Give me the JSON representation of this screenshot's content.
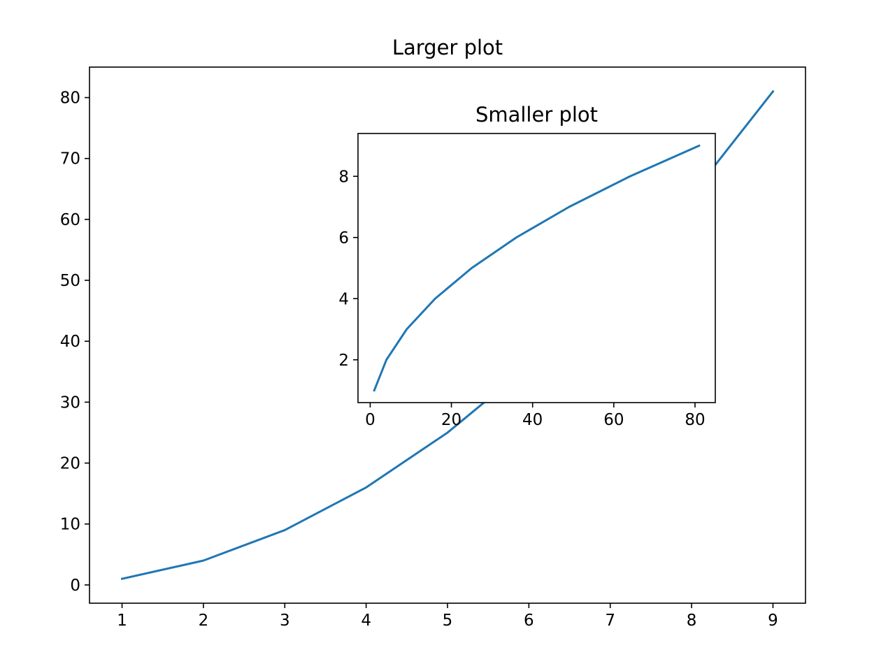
{
  "chart_data": [
    {
      "type": "line",
      "title": "Larger plot",
      "xlabel": "",
      "ylabel": "",
      "x": [
        1,
        2,
        3,
        4,
        5,
        6,
        7,
        8,
        9
      ],
      "series": [
        {
          "values": [
            1,
            4,
            9,
            16,
            25,
            36,
            49,
            64,
            81
          ],
          "color": "#1f77b4"
        }
      ],
      "xlim": [
        0.6,
        9.4
      ],
      "ylim": [
        -3,
        85
      ],
      "xticks": [
        1,
        2,
        3,
        4,
        5,
        6,
        7,
        8,
        9
      ],
      "yticks": [
        0,
        10,
        20,
        30,
        40,
        50,
        60,
        70,
        80
      ],
      "grid": false
    },
    {
      "type": "line",
      "title": "Smaller plot",
      "xlabel": "",
      "ylabel": "",
      "x": [
        1,
        4,
        9,
        16,
        25,
        36,
        49,
        64,
        81
      ],
      "series": [
        {
          "values": [
            1,
            2,
            3,
            4,
            5,
            6,
            7,
            8,
            9
          ],
          "color": "#1f77b4"
        }
      ],
      "xlim": [
        -3,
        85
      ],
      "ylim": [
        0.6,
        9.4
      ],
      "xticks": [
        0,
        20,
        40,
        60,
        80
      ],
      "yticks": [
        2,
        4,
        6,
        8
      ],
      "grid": false
    }
  ]
}
